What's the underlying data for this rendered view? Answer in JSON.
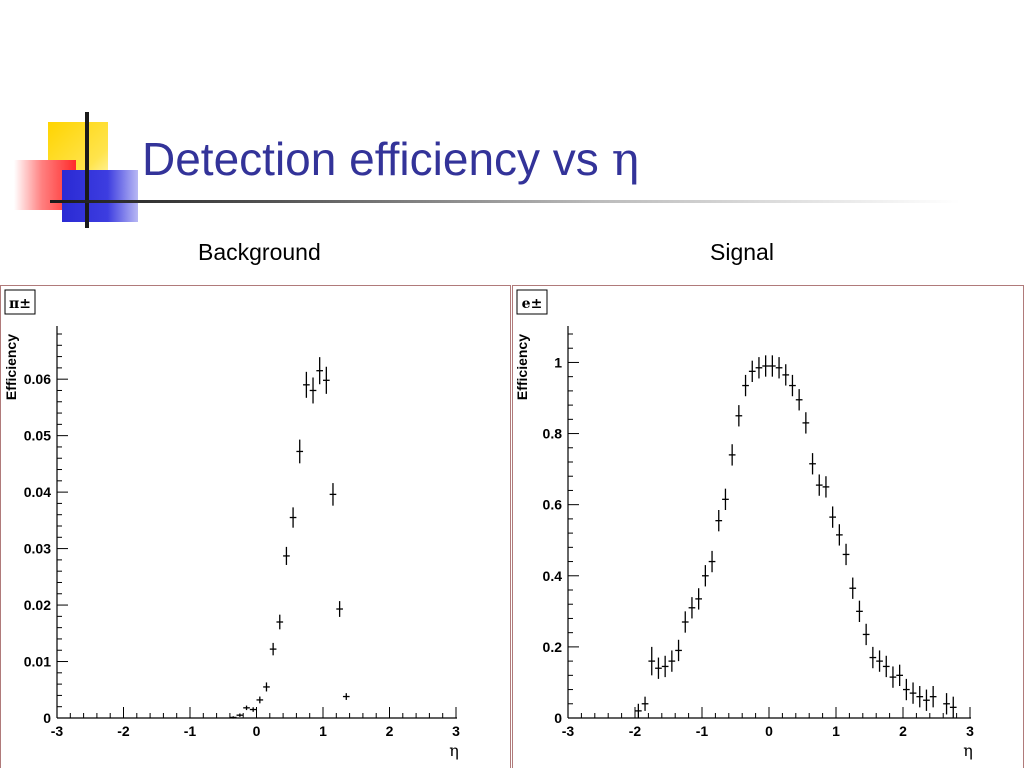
{
  "slide": {
    "title": "Detection efficiency vs",
    "title_symbol": "η",
    "label_left": "Background",
    "label_right": "Signal"
  },
  "colors": {
    "title": "#333399",
    "accent_yellow": "#ffd400",
    "accent_red": "#ff2a2a",
    "accent_blue": "#2a2ad4",
    "markers": "#000000"
  },
  "chart_data": [
    {
      "type": "scatter",
      "particle_tag": "π±",
      "xlabel": "η",
      "ylabel": "Efficiency",
      "xlim": [
        -3,
        3
      ],
      "ylim": [
        0,
        0.068
      ],
      "xticks": [
        -3,
        -2,
        -1,
        0,
        1,
        2,
        3
      ],
      "xtick_labels": [
        "-3",
        "-2",
        "-1",
        "0",
        "1",
        "2",
        "3"
      ],
      "yticks": [
        0,
        0.01,
        0.02,
        0.03,
        0.04,
        0.05,
        0.06
      ],
      "ytick_labels": [
        "0",
        "0.01",
        "0.02",
        "0.03",
        "0.04",
        "0.05",
        "0.06"
      ],
      "grid": false,
      "points": [
        {
          "x": -0.35,
          "y": 0.0001,
          "err": 0.0002
        },
        {
          "x": -0.25,
          "y": 0.0005,
          "err": 0.0003
        },
        {
          "x": -0.15,
          "y": 0.0018,
          "err": 0.0004
        },
        {
          "x": -0.05,
          "y": 0.0015,
          "err": 0.0004
        },
        {
          "x": 0.05,
          "y": 0.0032,
          "err": 0.0006
        },
        {
          "x": 0.15,
          "y": 0.0055,
          "err": 0.0008
        },
        {
          "x": 0.25,
          "y": 0.0122,
          "err": 0.0011
        },
        {
          "x": 0.35,
          "y": 0.017,
          "err": 0.0013
        },
        {
          "x": 0.45,
          "y": 0.0287,
          "err": 0.0016
        },
        {
          "x": 0.55,
          "y": 0.0355,
          "err": 0.0018
        },
        {
          "x": 0.65,
          "y": 0.0472,
          "err": 0.0021
        },
        {
          "x": 0.75,
          "y": 0.059,
          "err": 0.0023
        },
        {
          "x": 0.85,
          "y": 0.058,
          "err": 0.0023
        },
        {
          "x": 0.95,
          "y": 0.0615,
          "err": 0.0024
        },
        {
          "x": 1.05,
          "y": 0.0598,
          "err": 0.0024
        },
        {
          "x": 1.15,
          "y": 0.0396,
          "err": 0.002
        },
        {
          "x": 1.25,
          "y": 0.0193,
          "err": 0.0014
        },
        {
          "x": 1.35,
          "y": 0.0038,
          "err": 0.0006
        }
      ]
    },
    {
      "type": "scatter",
      "particle_tag": "e±",
      "xlabel": "η",
      "ylabel": "Efficiency",
      "xlim": [
        -3,
        3
      ],
      "ylim": [
        0,
        1.08
      ],
      "xticks": [
        -3,
        -2,
        -1,
        0,
        1,
        2,
        3
      ],
      "xtick_labels": [
        "-3",
        "-2",
        "-1",
        "0",
        "1",
        "2",
        "3"
      ],
      "yticks": [
        0,
        0.2,
        0.4,
        0.6,
        0.8,
        1
      ],
      "ytick_labels": [
        "0",
        "0.2",
        "0.4",
        "0.6",
        "0.8",
        "1"
      ],
      "grid": false,
      "points": [
        {
          "x": -1.95,
          "y": 0.02,
          "err": 0.02
        },
        {
          "x": -1.85,
          "y": 0.04,
          "err": 0.02
        },
        {
          "x": -1.75,
          "y": 0.16,
          "err": 0.04
        },
        {
          "x": -1.65,
          "y": 0.14,
          "err": 0.03
        },
        {
          "x": -1.55,
          "y": 0.145,
          "err": 0.03
        },
        {
          "x": -1.45,
          "y": 0.16,
          "err": 0.03
        },
        {
          "x": -1.35,
          "y": 0.19,
          "err": 0.03
        },
        {
          "x": -1.25,
          "y": 0.27,
          "err": 0.03
        },
        {
          "x": -1.15,
          "y": 0.31,
          "err": 0.03
        },
        {
          "x": -1.05,
          "y": 0.335,
          "err": 0.03
        },
        {
          "x": -0.95,
          "y": 0.4,
          "err": 0.03
        },
        {
          "x": -0.85,
          "y": 0.44,
          "err": 0.03
        },
        {
          "x": -0.75,
          "y": 0.555,
          "err": 0.03
        },
        {
          "x": -0.65,
          "y": 0.615,
          "err": 0.03
        },
        {
          "x": -0.55,
          "y": 0.74,
          "err": 0.03
        },
        {
          "x": -0.45,
          "y": 0.85,
          "err": 0.03
        },
        {
          "x": -0.35,
          "y": 0.935,
          "err": 0.03
        },
        {
          "x": -0.25,
          "y": 0.975,
          "err": 0.03
        },
        {
          "x": -0.15,
          "y": 0.985,
          "err": 0.03
        },
        {
          "x": -0.05,
          "y": 0.99,
          "err": 0.03
        },
        {
          "x": 0.05,
          "y": 0.99,
          "err": 0.03
        },
        {
          "x": 0.15,
          "y": 0.985,
          "err": 0.03
        },
        {
          "x": 0.25,
          "y": 0.965,
          "err": 0.03
        },
        {
          "x": 0.35,
          "y": 0.935,
          "err": 0.03
        },
        {
          "x": 0.45,
          "y": 0.895,
          "err": 0.03
        },
        {
          "x": 0.55,
          "y": 0.83,
          "err": 0.03
        },
        {
          "x": 0.65,
          "y": 0.715,
          "err": 0.03
        },
        {
          "x": 0.75,
          "y": 0.655,
          "err": 0.03
        },
        {
          "x": 0.85,
          "y": 0.65,
          "err": 0.03
        },
        {
          "x": 0.95,
          "y": 0.565,
          "err": 0.03
        },
        {
          "x": 1.05,
          "y": 0.515,
          "err": 0.03
        },
        {
          "x": 1.15,
          "y": 0.46,
          "err": 0.03
        },
        {
          "x": 1.25,
          "y": 0.365,
          "err": 0.03
        },
        {
          "x": 1.35,
          "y": 0.3,
          "err": 0.03
        },
        {
          "x": 1.45,
          "y": 0.235,
          "err": 0.03
        },
        {
          "x": 1.55,
          "y": 0.17,
          "err": 0.03
        },
        {
          "x": 1.65,
          "y": 0.16,
          "err": 0.03
        },
        {
          "x": 1.75,
          "y": 0.145,
          "err": 0.03
        },
        {
          "x": 1.85,
          "y": 0.115,
          "err": 0.03
        },
        {
          "x": 1.95,
          "y": 0.12,
          "err": 0.03
        },
        {
          "x": 2.05,
          "y": 0.08,
          "err": 0.03
        },
        {
          "x": 2.15,
          "y": 0.07,
          "err": 0.03
        },
        {
          "x": 2.25,
          "y": 0.06,
          "err": 0.03
        },
        {
          "x": 2.35,
          "y": 0.05,
          "err": 0.03
        },
        {
          "x": 2.45,
          "y": 0.06,
          "err": 0.03
        },
        {
          "x": 2.65,
          "y": 0.04,
          "err": 0.03
        },
        {
          "x": 2.75,
          "y": 0.03,
          "err": 0.03
        }
      ]
    }
  ]
}
